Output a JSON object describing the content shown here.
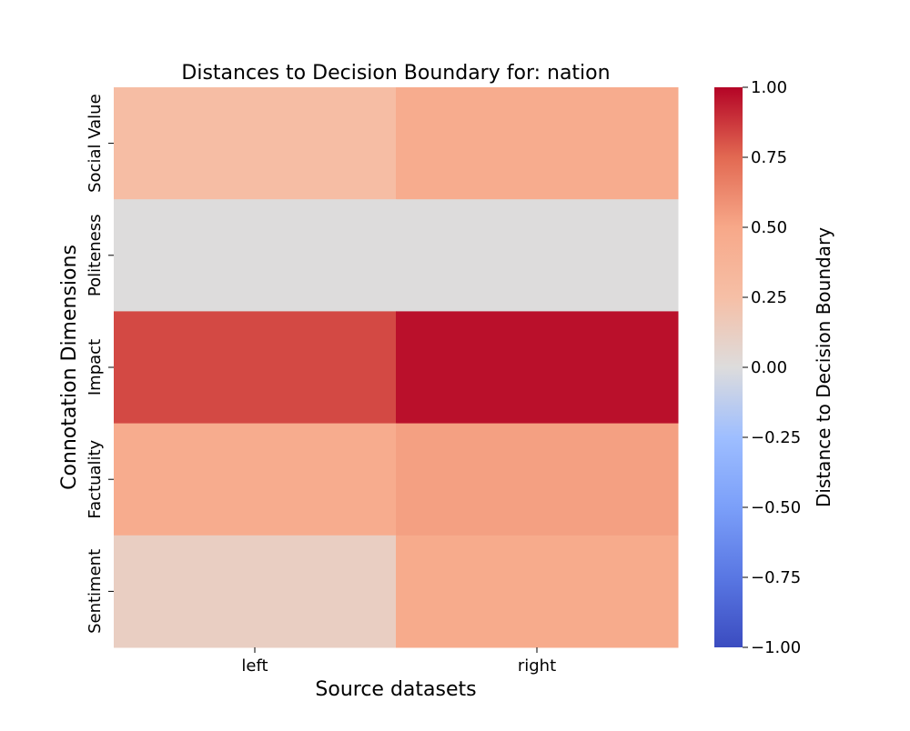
{
  "chart_data": {
    "type": "heatmap",
    "title": "Distances to Decision Boundary for: nation",
    "xlabel": "Source datasets",
    "ylabel": "Connotation Dimensions",
    "x_categories": [
      "left",
      "right"
    ],
    "y_categories": [
      "Social Value",
      "Politeness",
      "Impact",
      "Factuality",
      "Sentiment"
    ],
    "values": [
      [
        0.27,
        0.46
      ],
      [
        0.0,
        0.0
      ],
      [
        0.83,
        0.97
      ],
      [
        0.46,
        0.53
      ],
      [
        0.12,
        0.47
      ]
    ],
    "colorbar": {
      "label": "Distance to Decision Boundary",
      "range": [
        -1.0,
        1.0
      ],
      "ticks": [
        "1.00",
        "0.75",
        "0.50",
        "0.25",
        "0.00",
        "−0.25",
        "−0.50",
        "−0.75",
        "−1.00"
      ],
      "colormap": "coolwarm",
      "colors": [
        "#3b4cc0",
        "#dddcdc",
        "#b40426"
      ]
    }
  }
}
